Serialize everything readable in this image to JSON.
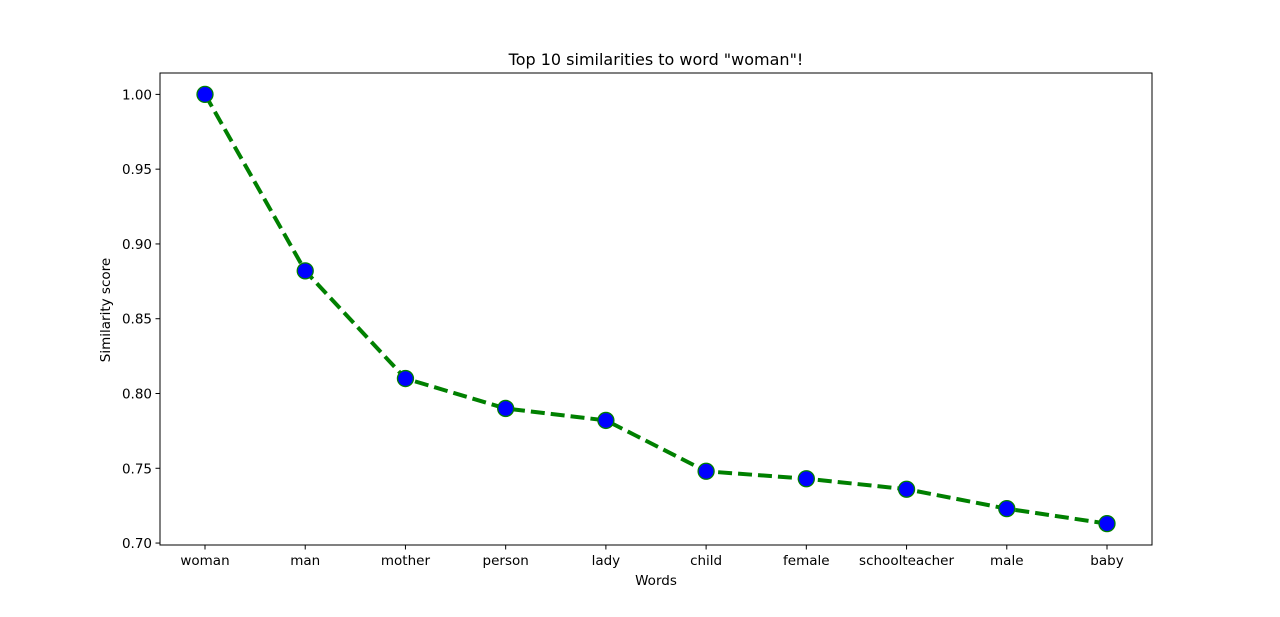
{
  "chart_data": {
    "type": "line",
    "title": "Top 10 similarities to word \"woman\"!",
    "xlabel": "Words",
    "ylabel": "Similarity score",
    "categories": [
      "woman",
      "man",
      "mother",
      "person",
      "lady",
      "child",
      "female",
      "schoolteacher",
      "male",
      "baby"
    ],
    "values": [
      1.0,
      0.882,
      0.81,
      0.79,
      0.782,
      0.748,
      0.743,
      0.736,
      0.723,
      0.713
    ],
    "ylim": [
      0.6987,
      1.0143
    ],
    "yticks": [
      0.7,
      0.75,
      0.8,
      0.85,
      0.9,
      0.95,
      1.0
    ],
    "ytick_labels": [
      "0.70",
      "0.75",
      "0.80",
      "0.85",
      "0.90",
      "0.95",
      "1.00"
    ],
    "grid": false,
    "line_color": "#008000",
    "line_style": "dashed",
    "marker_face_color": "#0000ff",
    "marker_edge_color": "#008000"
  }
}
